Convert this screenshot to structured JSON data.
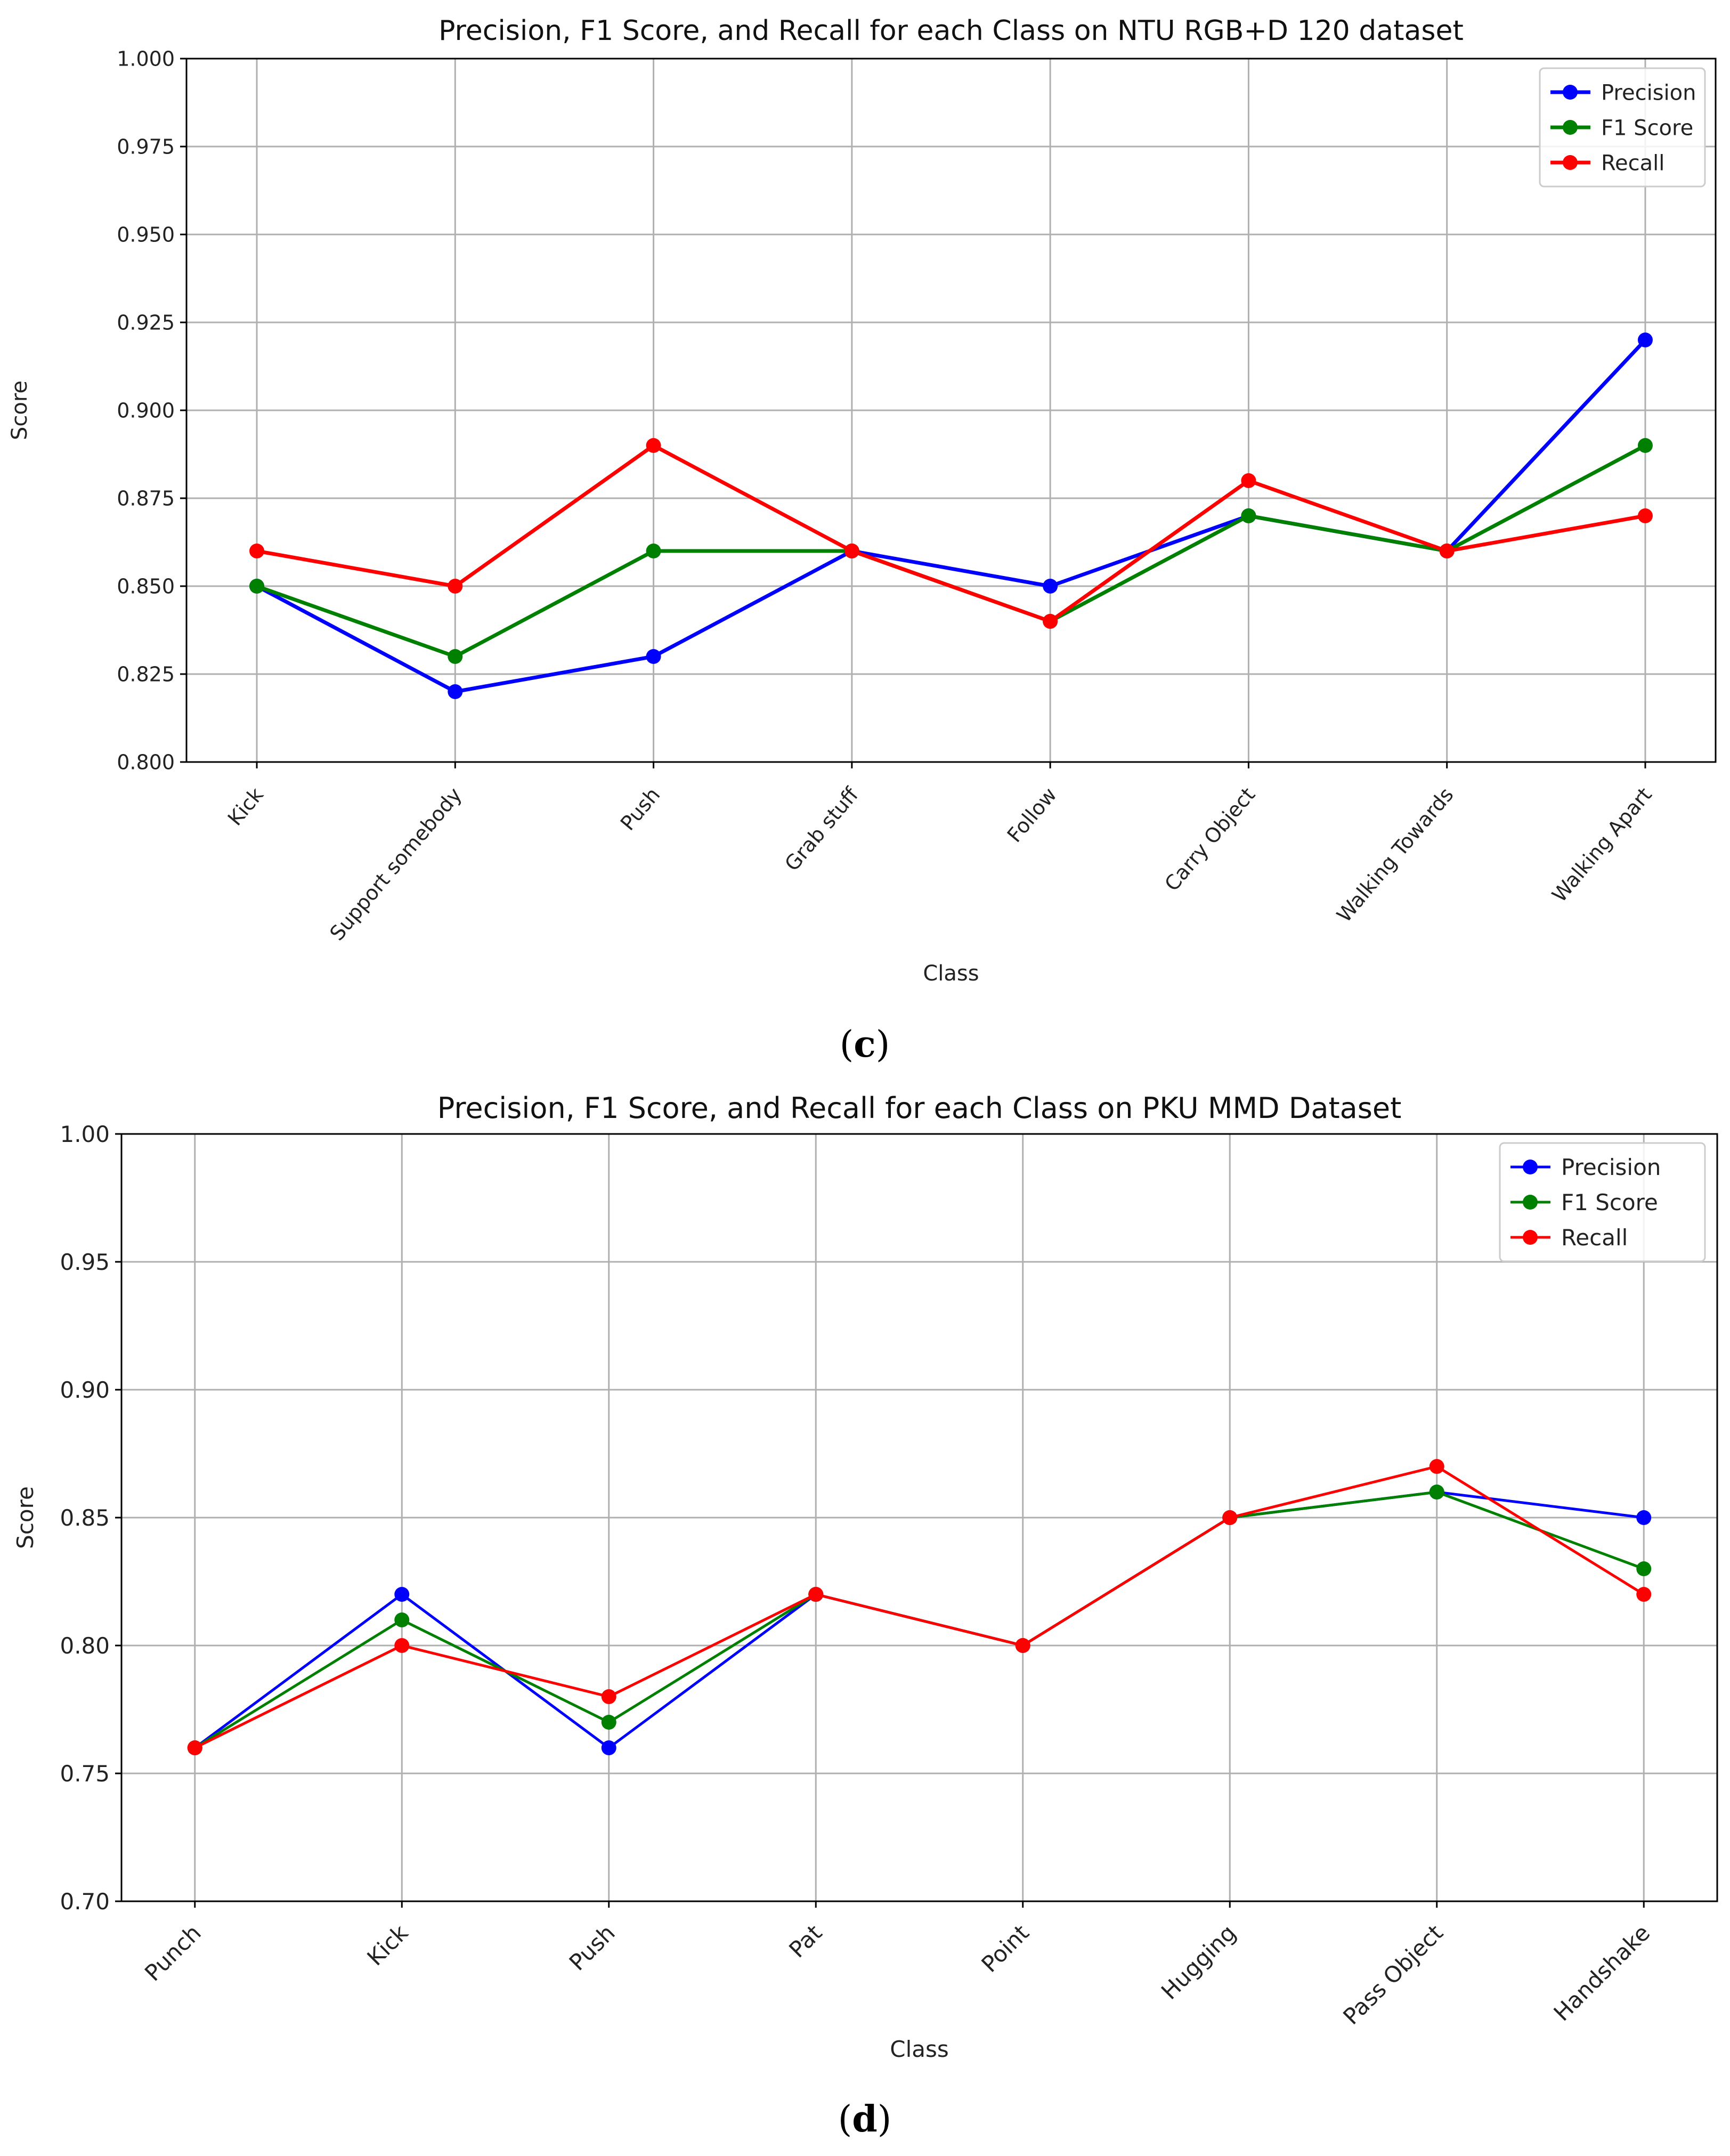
{
  "chart_data": [
    {
      "id": "c",
      "type": "line",
      "title": "Precision, F1 Score, and Recall for each Class on NTU RGB+D 120 dataset",
      "xlabel": "Class",
      "ylabel": "Score",
      "ylim": [
        0.8,
        1.0
      ],
      "yticks": [
        "0.800",
        "0.825",
        "0.850",
        "0.875",
        "0.900",
        "0.925",
        "0.950",
        "0.975",
        "1.000"
      ],
      "grid": true,
      "legend_position": "top-right",
      "categories": [
        "Kick",
        "Support somebody",
        "Push",
        "Grab stuff",
        "Follow",
        "Carry Object",
        "Walking Towards",
        "Walking Apart"
      ],
      "series": [
        {
          "name": "Precision",
          "color": "#0000ff",
          "values": [
            0.85,
            0.82,
            0.83,
            0.86,
            0.85,
            0.87,
            0.86,
            0.92
          ]
        },
        {
          "name": "F1 Score",
          "color": "#008000",
          "values": [
            0.85,
            0.83,
            0.86,
            0.86,
            0.84,
            0.87,
            0.86,
            0.89
          ]
        },
        {
          "name": "Recall",
          "color": "#ff0000",
          "values": [
            0.86,
            0.85,
            0.89,
            0.86,
            0.84,
            0.88,
            0.86,
            0.87
          ]
        }
      ]
    },
    {
      "id": "d",
      "type": "line",
      "title": "Precision, F1 Score, and Recall for each Class on PKU MMD Dataset",
      "xlabel": "Class",
      "ylabel": "Score",
      "ylim": [
        0.7,
        1.0
      ],
      "yticks": [
        "0.70",
        "0.75",
        "0.80",
        "0.85",
        "0.90",
        "0.95",
        "1.00"
      ],
      "grid": true,
      "legend_position": "top-right",
      "categories": [
        "Punch",
        "Kick",
        "Push",
        "Pat",
        "Point",
        "Hugging",
        "Pass Object",
        "Handshake"
      ],
      "series": [
        {
          "name": "Precision",
          "color": "#0000ff",
          "values": [
            0.76,
            0.82,
            0.76,
            0.82,
            0.8,
            0.85,
            0.86,
            0.85
          ]
        },
        {
          "name": "F1 Score",
          "color": "#008000",
          "values": [
            0.76,
            0.81,
            0.77,
            0.82,
            0.8,
            0.85,
            0.86,
            0.83
          ]
        },
        {
          "name": "Recall",
          "color": "#ff0000",
          "values": [
            0.76,
            0.8,
            0.78,
            0.82,
            0.8,
            0.85,
            0.87,
            0.82
          ]
        }
      ]
    }
  ],
  "captions": {
    "c": {
      "open": "(",
      "letter": "c",
      "close": ")"
    },
    "d": {
      "open": "(",
      "letter": "d",
      "close": ")"
    }
  }
}
